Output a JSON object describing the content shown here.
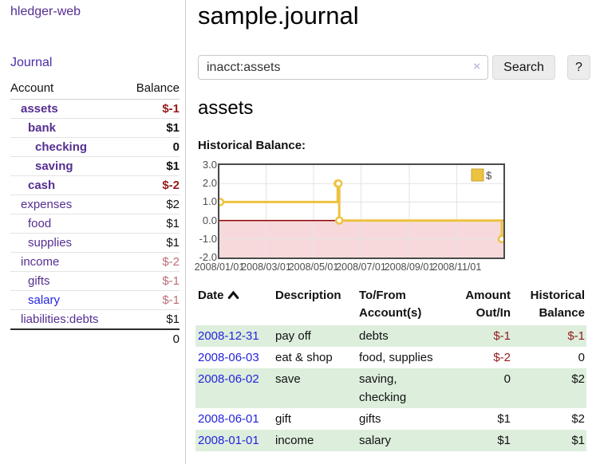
{
  "app": {
    "brand": "hledger-web",
    "nav": {
      "journal_label": "Journal"
    }
  },
  "colors": {
    "link_purple": "#552E91",
    "link_blue": "#2424DB",
    "negative_strong": "#941A1A",
    "negative_soft": "#BC6E77",
    "row_stripe_green": "#DDEEDD",
    "chart_series_gold": "#EDC240",
    "chart_negative_region_pink": "#F8D9DB",
    "chart_zero_line_red": "#8B0000"
  },
  "sidebar": {
    "header": {
      "account": "Account",
      "balance": "Balance"
    },
    "accounts": [
      {
        "name": "assets",
        "depth": 1,
        "bold": true,
        "balance": "$-1",
        "neg": "strong"
      },
      {
        "name": "bank",
        "depth": 2,
        "bold": true,
        "balance": "$1"
      },
      {
        "name": "checking",
        "depth": 3,
        "bold": true,
        "balance": "0"
      },
      {
        "name": "saving",
        "depth": 3,
        "bold": true,
        "balance": "$1"
      },
      {
        "name": "cash",
        "depth": 2,
        "bold": true,
        "balance": "$-2",
        "neg": "strong"
      },
      {
        "name": "expenses",
        "depth": 1,
        "bold": false,
        "balance": "$2"
      },
      {
        "name": "food",
        "depth": 2,
        "bold": false,
        "balance": "$1"
      },
      {
        "name": "supplies",
        "depth": 2,
        "bold": false,
        "balance": "$1"
      },
      {
        "name": "income",
        "depth": 1,
        "bold": false,
        "balance": "$-2",
        "neg": "soft"
      },
      {
        "name": "gifts",
        "depth": 2,
        "bold": false,
        "balance": "$-1",
        "neg": "soft"
      },
      {
        "name": "salary",
        "depth": 2,
        "bold": false,
        "balance": "$-1",
        "neg": "soft",
        "link_color": "blue"
      },
      {
        "name": "liabilities:debts",
        "depth": 1,
        "bold": false,
        "balance": "$1"
      }
    ],
    "total": "0"
  },
  "header": {
    "title": "sample.journal"
  },
  "search": {
    "value": "inacct:assets",
    "clear_icon": "×",
    "button_label": "Search",
    "help_label": "?"
  },
  "account_page": {
    "title": "assets",
    "chart_heading": "Historical Balance:"
  },
  "chart_data": {
    "type": "line",
    "step": true,
    "title": "Historical Balance:",
    "legend": {
      "label": "$",
      "position": "top-right"
    },
    "x_range": [
      "2008-01-01",
      "2008-12-31"
    ],
    "ylim": [
      -2,
      3
    ],
    "y_ticks": [
      "3.0",
      "2.0",
      "1.0",
      "0.0",
      "-1.0",
      "-2.0"
    ],
    "x_ticks": [
      "2008/01/01",
      "2008/03/01",
      "2008/05/01",
      "2008/07/01",
      "2008/09/01",
      "2008/11/01"
    ],
    "series": [
      {
        "name": "$",
        "color": "#EDC240",
        "points": [
          [
            "2008-01-01",
            1
          ],
          [
            "2008-06-01",
            2
          ],
          [
            "2008-06-02",
            2
          ],
          [
            "2008-06-03",
            0
          ],
          [
            "2008-12-31",
            -1
          ]
        ]
      }
    ],
    "grid": true,
    "negative_region_color": "#F8D9DB",
    "zero_line_color": "#8B0000"
  },
  "register": {
    "columns": [
      "Date",
      "Description",
      "To/From Account(s)",
      "Amount Out/In",
      "Historical Balance"
    ],
    "sort": {
      "column": "Date",
      "icon": "chevron-up"
    },
    "rows": [
      {
        "date": "2008-12-31",
        "description": "pay off",
        "accounts": "debts",
        "amount": "$-1",
        "amount_neg": true,
        "balance": "$-1",
        "balance_neg": true
      },
      {
        "date": "2008-06-03",
        "description": "eat & shop",
        "accounts": "food, supplies",
        "amount": "$-2",
        "amount_neg": true,
        "balance": "0",
        "balance_neg": false
      },
      {
        "date": "2008-06-02",
        "description": "save",
        "accounts": "saving, checking",
        "amount": "0",
        "amount_neg": false,
        "balance": "$2",
        "balance_neg": false
      },
      {
        "date": "2008-06-01",
        "description": "gift",
        "accounts": "gifts",
        "amount": "$1",
        "amount_neg": false,
        "balance": "$2",
        "balance_neg": false
      },
      {
        "date": "2008-01-01",
        "description": "income",
        "accounts": "salary",
        "amount": "$1",
        "amount_neg": false,
        "balance": "$1",
        "balance_neg": false
      }
    ]
  }
}
